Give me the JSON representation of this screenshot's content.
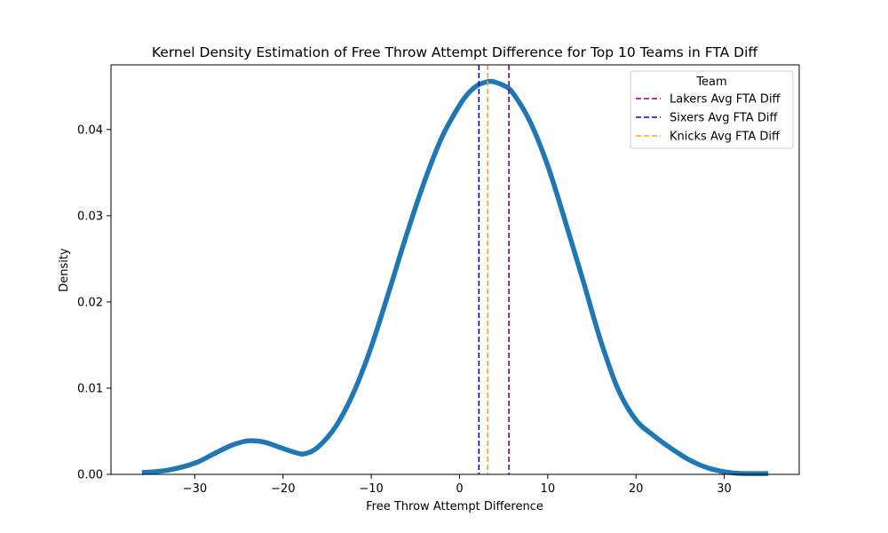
{
  "chart_data": {
    "type": "line",
    "title": "Kernel Density Estimation of Free Throw Attempt Difference for Top 10 Teams in FTA Diff",
    "xlabel": "Free Throw Attempt Difference",
    "ylabel": "Density",
    "xlim": [
      -39.5,
      38.5
    ],
    "ylim": [
      0,
      0.0475
    ],
    "xticks": [
      -30,
      -20,
      -10,
      0,
      10,
      20,
      30
    ],
    "xtick_labels": [
      "−30",
      "−20",
      "−10",
      "0",
      "10",
      "20",
      "30"
    ],
    "yticks": [
      0,
      0.01,
      0.02,
      0.03,
      0.04
    ],
    "ytick_labels": [
      "0.00",
      "0.01",
      "0.02",
      "0.03",
      "0.04"
    ],
    "grid": false,
    "series": [
      {
        "color": "#1f77b4",
        "x": [
          -36,
          -33,
          -30,
          -28,
          -26,
          -24.5,
          -23.5,
          -22,
          -20,
          -18.5,
          -17.5,
          -16,
          -14,
          -12,
          -10,
          -8,
          -6,
          -4,
          -2,
          0,
          1,
          2,
          3,
          3.5,
          4,
          5,
          6,
          8,
          10,
          12,
          14,
          16,
          18,
          20,
          22,
          24,
          26,
          28,
          30,
          32,
          35
        ],
        "y": [
          0.0002,
          0.0005,
          0.0013,
          0.0023,
          0.0033,
          0.0038,
          0.0039,
          0.0037,
          0.003,
          0.0025,
          0.0024,
          0.0032,
          0.0056,
          0.0095,
          0.0148,
          0.0212,
          0.0278,
          0.0339,
          0.0391,
          0.0428,
          0.0442,
          0.0451,
          0.0455,
          0.0456,
          0.0455,
          0.0451,
          0.0443,
          0.0409,
          0.0358,
          0.0293,
          0.0225,
          0.0155,
          0.0098,
          0.0063,
          0.0045,
          0.003,
          0.0017,
          0.0008,
          0.0003,
          0.0001,
          0.0001
        ]
      }
    ],
    "vlines": [
      {
        "name": "Lakers Avg FTA Diff",
        "x": 5.6,
        "color": "#800080"
      },
      {
        "name": "Sixers Avg FTA Diff",
        "x": 2.2,
        "color": "#0000ff"
      },
      {
        "name": "Knicks Avg FTA Diff",
        "x": 3.2,
        "color": "#ffa500"
      }
    ],
    "legend": {
      "title": "Team",
      "placement": "top-right",
      "entries": [
        "Lakers Avg FTA Diff",
        "Sixers Avg FTA Diff",
        "Knicks Avg FTA Diff"
      ]
    }
  }
}
